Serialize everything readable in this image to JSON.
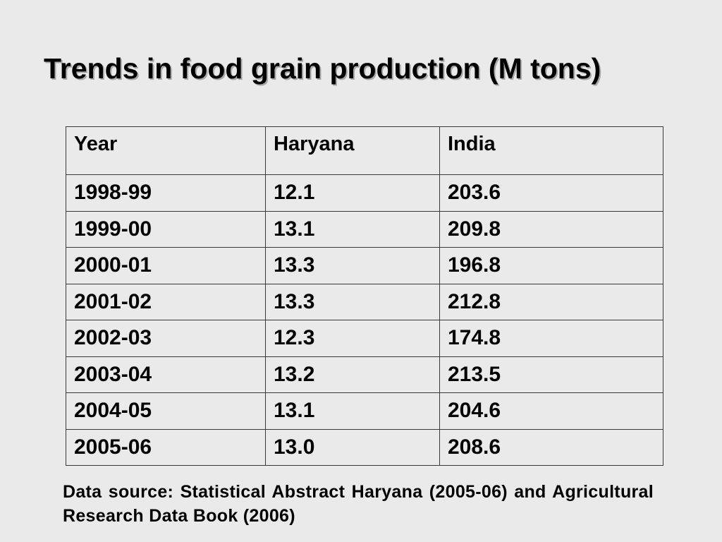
{
  "slide": {
    "title": "Trends in food grain production (M tons)",
    "source_note": "Data source: Statistical Abstract Haryana (2005-06) and Agricultural Research Data Book (2006)"
  },
  "table": {
    "headers": [
      "Year",
      "Haryana",
      "India"
    ],
    "rows": [
      [
        "1998-99",
        "12.1",
        "203.6"
      ],
      [
        "1999-00",
        "13.1",
        "209.8"
      ],
      [
        "2000-01",
        "13.3",
        "196.8"
      ],
      [
        "2001-02",
        "13.3",
        "212.8"
      ],
      [
        "2002-03",
        "12.3",
        "174.8"
      ],
      [
        "2003-04",
        "13.2",
        "213.5"
      ],
      [
        "2004-05",
        "13.1",
        "204.6"
      ],
      [
        "2005-06",
        "13.0",
        "208.6"
      ]
    ]
  }
}
